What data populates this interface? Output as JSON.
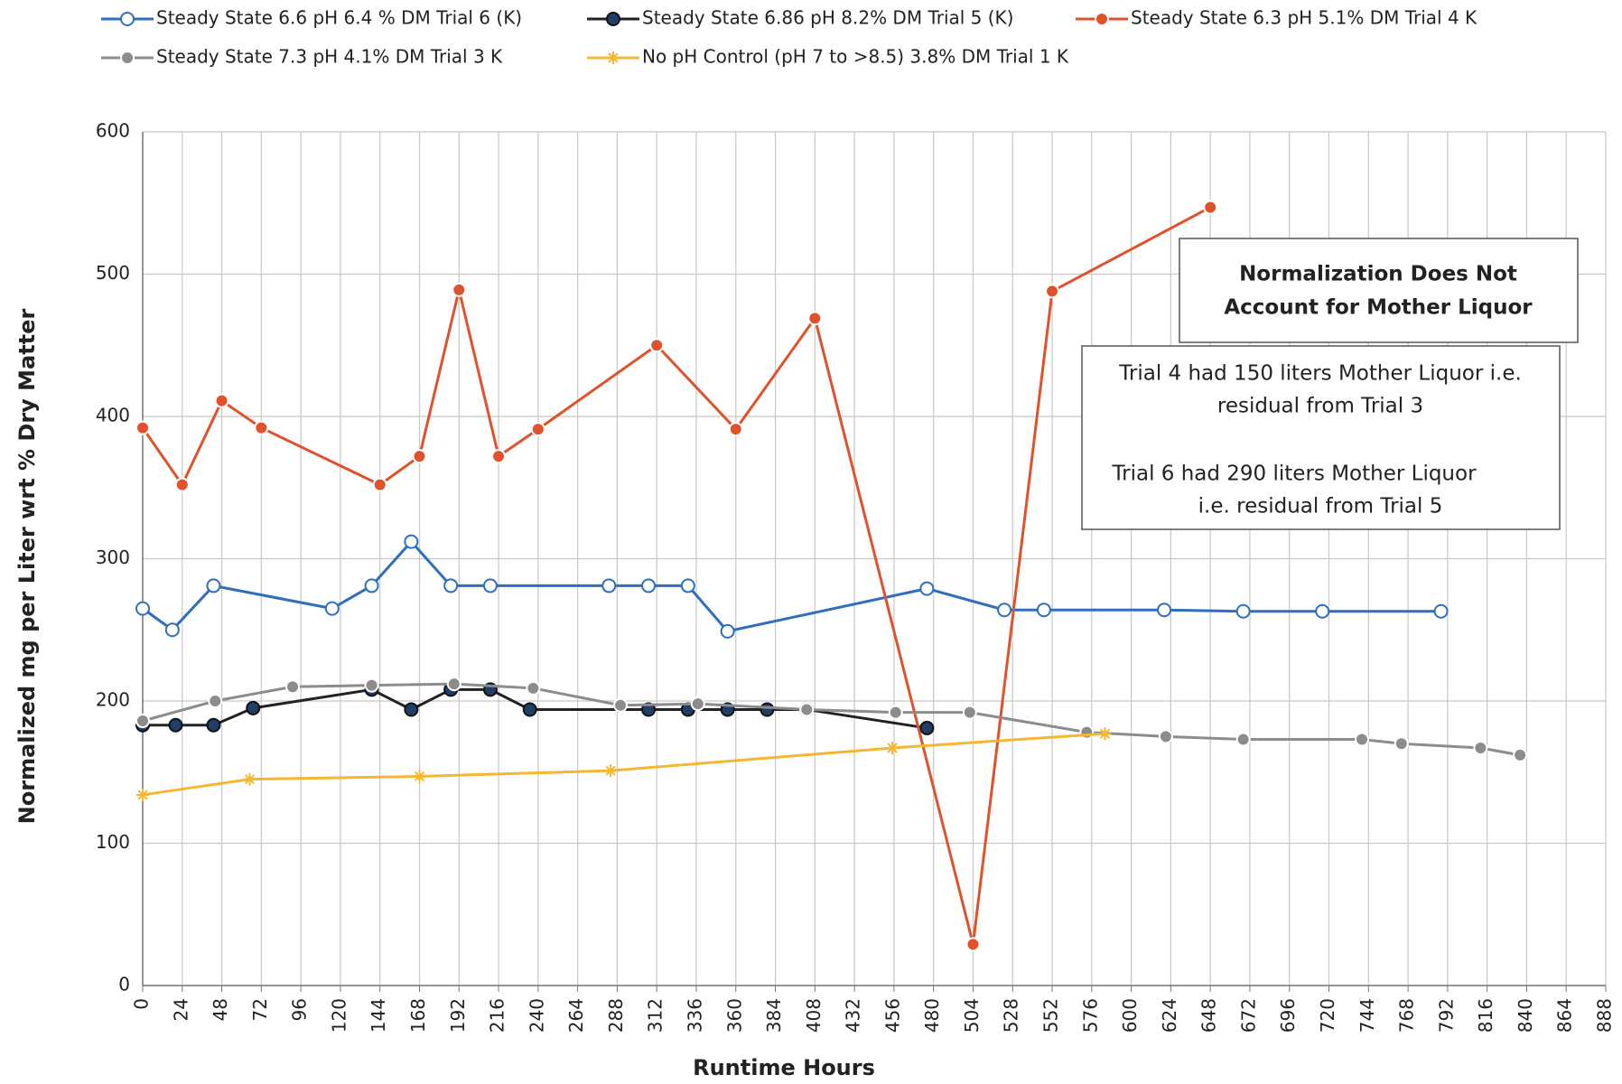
{
  "chart_data": {
    "type": "line",
    "x_label": "Runtime Hours",
    "y_label": "Normalized mg per Liter wrt % Dry Matter",
    "xlim": [
      0,
      888
    ],
    "xticks": [
      0,
      24,
      48,
      72,
      96,
      120,
      144,
      168,
      192,
      216,
      240,
      264,
      288,
      312,
      336,
      360,
      384,
      408,
      432,
      456,
      480,
      504,
      528,
      552,
      576,
      600,
      624,
      648,
      672,
      696,
      720,
      744,
      768,
      792,
      816,
      840,
      864,
      888
    ],
    "ylim": [
      0,
      600
    ],
    "yticks": [
      0,
      100,
      200,
      300,
      400,
      500,
      600
    ],
    "grid": true,
    "series": [
      {
        "name": "Steady State 6.6 pH 6.4 % DM Trial 6 (K)",
        "color": "#2e6fbd",
        "marker": "open-circle",
        "x": [
          0,
          18,
          43,
          115,
          139,
          163,
          187,
          211,
          283,
          307,
          331,
          355,
          476,
          523,
          547,
          620,
          668,
          716,
          788
        ],
        "values": [
          265,
          250,
          281,
          265,
          281,
          312,
          281,
          281,
          281,
          281,
          281,
          249,
          279,
          264,
          264,
          264,
          263,
          263,
          263
        ]
      },
      {
        "name": "Steady State 6.86 pH 8.2% DM Trial 5 (K)",
        "color": "#222222",
        "marker": "dark-circle",
        "x": [
          0,
          20,
          43,
          67,
          139,
          163,
          187,
          211,
          235,
          307,
          331,
          355,
          379,
          403,
          476
        ],
        "values": [
          183,
          183,
          183,
          195,
          208,
          194,
          208,
          208,
          194,
          194,
          194,
          194,
          194,
          194,
          181
        ]
      },
      {
        "name": "Steady State 6.3 pH 5.1% DM Trial 4 K",
        "color": "#e0522b",
        "marker": "filled-circle",
        "x": [
          0,
          24,
          48,
          72,
          144,
          168,
          192,
          216,
          240,
          312,
          360,
          408,
          504,
          552,
          648
        ],
        "values": [
          392,
          352,
          411,
          392,
          352,
          372,
          489,
          372,
          391,
          450,
          391,
          469,
          29,
          488,
          547
        ]
      },
      {
        "name": "Steady State 7.3 pH 4.1% DM Trial 3 K",
        "color": "#8c8c8c",
        "marker": "filled-circle",
        "x": [
          0,
          44,
          91,
          139,
          189,
          237,
          290,
          337,
          403,
          457,
          502,
          573,
          621,
          668,
          740,
          764,
          812,
          836
        ],
        "values": [
          186,
          200,
          210,
          211,
          212,
          209,
          197,
          198,
          194,
          192,
          192,
          178,
          175,
          173,
          173,
          170,
          167,
          162
        ]
      },
      {
        "name": "No pH Control (pH 7 to  >8.5) 3.8% DM Trial 1 K",
        "color": "#f5b731",
        "marker": "star",
        "x": [
          0,
          65,
          168,
          284,
          455,
          584
        ],
        "values": [
          134,
          145,
          147,
          151,
          167,
          177
        ]
      }
    ],
    "annotations": [
      {
        "lines": [
          "Normalization Does Not",
          "Account for Mother Liquor"
        ]
      },
      {
        "lines": [
          "Trial 4 had 150 liters Mother Liquor i.e.",
          "residual from Trial 3",
          "Trial 6 had 290 liters Mother Liquor",
          "i.e. residual from Trial 5"
        ]
      }
    ]
  }
}
